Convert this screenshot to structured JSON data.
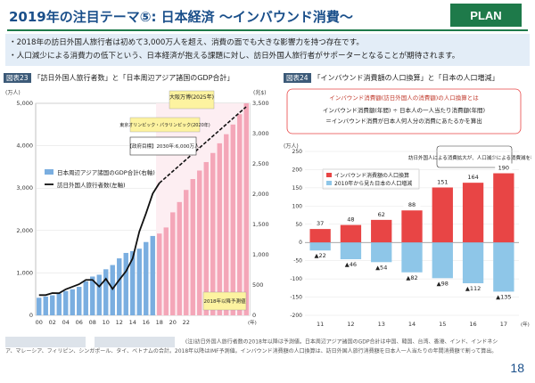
{
  "header": {
    "title": "2019年の注目テーマ⑤: 日本経済 ～インバウンド消費～",
    "badge": "PLAN"
  },
  "bullets": [
    "・2018年の訪日外国人旅行者は初めて3,000万人を超え、消費の面でも大きな影響力を持つ存在です。",
    "・人口減少による消費力の低下という、日本経済が抱える課題に対し、訪日外国人旅行者がサポーターとなることが期待されます。"
  ],
  "left_panel": {
    "tag": "図表23",
    "title": "「訪日外国人旅行者数」と「日本周辺アジア諸国のGDP合計」"
  },
  "right_panel": {
    "tag": "図表24",
    "title": "「インバウンド消費額の人口換算」と「日本の人口増減」",
    "def_title": "インバウンド消費額(訪日外国人の消費額)の人口換算とは",
    "def_line1": "インバウンド消費額(年間) ÷ 日本人の一人当たり消費額(年間)",
    "def_line2": "＝インバウンド消費が日本人何人分の消費にあたるかを算出",
    "note": "訪日外国人による消費拡大が、人口減少による消費減を補完"
  },
  "chart_data": [
    {
      "type": "bar",
      "title": "訪日外国人旅行者数と日本周辺アジア諸国のGDP合計",
      "y1label": "(万人)",
      "y2label": "(兆$)",
      "y1lim": [
        0,
        5000
      ],
      "y2lim": [
        0,
        3500
      ],
      "y1ticks": [
        "0",
        "1,000",
        "2,000",
        "3,000",
        "4,000",
        "5,000"
      ],
      "y2ticks": [
        "0",
        "500",
        "1,000",
        "1,500",
        "2,000",
        "2,500",
        "3,000",
        "3,500"
      ],
      "xticks": [
        "00",
        "02",
        "04",
        "06",
        "08",
        "10",
        "12",
        "14",
        "16",
        "18",
        "20",
        "22"
      ],
      "xunit": "(年)",
      "series": [
        {
          "name": "日本周辺アジア諸国のGDP合計(右軸)",
          "values": [
            290,
            310,
            330,
            360,
            400,
            430,
            470,
            560,
            640,
            670,
            760,
            830,
            940,
            1030,
            1060,
            1100,
            1210,
            1310,
            1350,
            1450,
            1700,
            1870,
            2070,
            2250,
            2390,
            2530,
            2680,
            2840,
            2990,
            3150,
            3320,
            3500
          ]
        },
        {
          "name": "訪日外国人旅行者数(左軸)",
          "values": [
            477,
            477,
            524,
            521,
            614,
            673,
            733,
            835,
            835,
            679,
            861,
            622,
            836,
            1036,
            1341,
            1974,
            2404,
            2869,
            3119
          ]
        }
      ],
      "forecast_label": "2018年以降予測値",
      "annotations": [
        "大阪万博(2025年)",
        "東京オリンピック・パラリンピック(2020年)",
        "【政府目標】2030年:6,000万人"
      ]
    },
    {
      "type": "bar",
      "title": "インバウンド消費額の人口換算と日本の人口増減",
      "ylabel": "(万人)",
      "ylim": [
        -200,
        250
      ],
      "yticks": [
        "-200",
        "-150",
        "-100",
        "-50",
        "0",
        "50",
        "100",
        "150",
        "200",
        "250"
      ],
      "categories": [
        "11",
        "12",
        "13",
        "14",
        "15",
        "16",
        "17"
      ],
      "xunit": "(年)",
      "series": [
        {
          "name": "インバウンド消費額の人口換算",
          "values": [
            37,
            48,
            62,
            88,
            151,
            164,
            190
          ],
          "labels": [
            "37",
            "48",
            "62",
            "88",
            "151",
            "164",
            "190"
          ]
        },
        {
          "name": "2010年から見た日本の人口増減",
          "values": [
            -22,
            -46,
            -54,
            -82,
            -98,
            -112,
            -135
          ],
          "labels": [
            "▲22",
            "▲46",
            "▲54",
            "▲82",
            "▲98",
            "▲112",
            "▲135"
          ]
        }
      ]
    }
  ],
  "footer": {
    "text": "(注)訪日外国人旅行者数の2018年以降は予測値。日本周辺アジア諸国のGDP合計は中国、韓国、台湾、香港、インド、インドネシア、マレーシア、フィリピン、シンガポール、タイ、ベトナムの合計。2018年以降はIMF予測値。インバウンド消費額の人口換算は、訪日外国人旅行消費額を日本人一人当たりの年間消費額で割って算出。",
    "page": "18"
  },
  "colors": {
    "bar_blue": "#7aaee0",
    "bar_pink": "#f4a6b8",
    "bar_red": "#e84545",
    "bar_sky": "#8ec6e8",
    "line": "#111111"
  }
}
